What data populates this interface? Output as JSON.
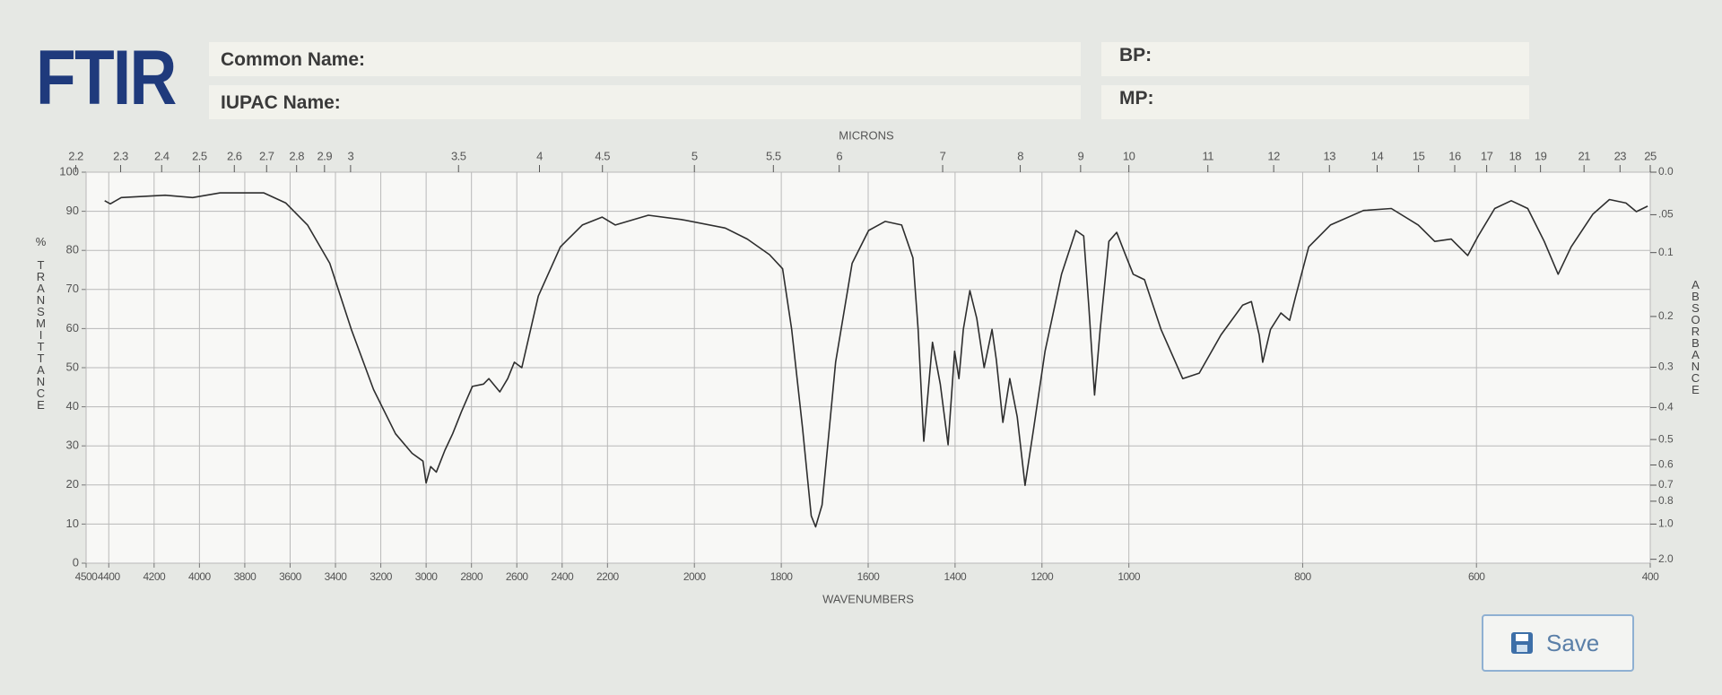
{
  "header": {
    "title": "FTIR",
    "common_name_label": "Common Name:",
    "iupac_name_label": "IUPAC Name:",
    "bp_label": "BP:",
    "mp_label": "MP:"
  },
  "save_button": "Save",
  "chart_data": {
    "type": "line",
    "x_label": "WAVENUMBERS",
    "x2_label": "MICRONS",
    "y_label": "% TRANSMITTANCE",
    "y2_label": "ABSORBANCE",
    "x_scale_breaks": [
      2200,
      1000
    ],
    "xlim": [
      4500,
      400
    ],
    "xticks": [
      4500,
      4400,
      4200,
      4000,
      3800,
      3600,
      3400,
      3200,
      3000,
      2800,
      2600,
      2400,
      2200,
      2000,
      1800,
      1600,
      1400,
      1200,
      1000,
      800,
      600,
      400
    ],
    "x2_scale": "reciprocal",
    "x2ticks": [
      2.2,
      2.3,
      2.4,
      2.5,
      2.6,
      2.7,
      2.8,
      2.9,
      3,
      3.5,
      4,
      4.5,
      5,
      5.5,
      6,
      7,
      8,
      9,
      10,
      11,
      12,
      13,
      14,
      15,
      16,
      17,
      18,
      19,
      21,
      23,
      25
    ],
    "ylim": [
      0,
      100
    ],
    "yticks": [
      0,
      10,
      20,
      30,
      40,
      50,
      60,
      70,
      80,
      90,
      100
    ],
    "y2_scale": "absorbance",
    "y2ticks": [
      {
        "value": 0,
        "label": "0.0"
      },
      {
        "value": 0.05,
        "label": ".05"
      },
      0.1,
      0.2,
      0.3,
      0.4,
      0.5,
      0.6,
      0.7,
      0.8,
      {
        "value": 1,
        "label": "1.0"
      },
      {
        "value": 2,
        "label": "2.0"
      }
    ],
    "grid": true,
    "x": [
      4418,
      4393,
      4345,
      4151,
      4030,
      3909,
      3716,
      3619,
      3523,
      3425,
      3330,
      3232,
      3135,
      3062,
      3014,
      3000,
      2980,
      2955,
      2917,
      2883,
      2844,
      2796,
      2747,
      2723,
      2675,
      2640,
      2611,
      2578,
      2505,
      2408,
      2311,
      2224,
      2182,
      2106,
      2030,
      1929,
      1878,
      1827,
      1797,
      1776,
      1751,
      1731,
      1721,
      1706,
      1675,
      1637,
      1599,
      1561,
      1523,
      1497,
      1485,
      1472,
      1452,
      1434,
      1416,
      1401,
      1391,
      1381,
      1366,
      1350,
      1333,
      1315,
      1305,
      1290,
      1274,
      1257,
      1239,
      1219,
      1193,
      1155,
      1122,
      1104,
      1092,
      1079,
      1066,
      1046,
      1028,
      1010,
      995,
      982,
      963,
      938,
      919,
      894,
      869,
      859,
      850,
      846,
      837,
      825,
      815,
      808,
      793,
      768,
      730,
      698,
      667,
      648,
      629,
      610,
      598,
      579,
      560,
      541,
      522,
      506,
      491,
      466,
      447,
      428,
      416,
      403
    ],
    "series": [
      {
        "color": "#2e2e2e",
        "values": [
          92.7,
          91.9,
          93.5,
          94.1,
          93.5,
          94.7,
          94.7,
          92.1,
          86.5,
          76.7,
          59.8,
          44.4,
          33.1,
          28.1,
          26.1,
          20.5,
          24.7,
          23.3,
          28.9,
          33.1,
          38.8,
          45.2,
          45.8,
          47.2,
          43.8,
          47.2,
          51.4,
          50,
          68.3,
          80.9,
          86.5,
          88.5,
          86.5,
          89,
          87.9,
          85.7,
          82.9,
          78.9,
          75.3,
          59.8,
          34.6,
          12.1,
          9.3,
          14.9,
          51.4,
          76.7,
          85.1,
          87.4,
          86.5,
          78.1,
          59.8,
          31.2,
          56.5,
          45.8,
          30.3,
          54.2,
          47.2,
          59.8,
          69.7,
          62.6,
          50,
          59.8,
          52,
          36,
          47.2,
          37.4,
          19.9,
          34.6,
          54.2,
          73.9,
          85.1,
          83.7,
          65.4,
          43,
          59.8,
          82.3,
          84.6,
          79.5,
          73.9,
          72.5,
          59.8,
          47.2,
          48.6,
          58.4,
          66,
          66.9,
          58.4,
          51.4,
          59.8,
          64,
          62.1,
          68.3,
          80.9,
          86.5,
          90.2,
          90.7,
          86.5,
          82.3,
          82.9,
          78.7,
          83.7,
          90.7,
          92.7,
          90.7,
          82.3,
          73.9,
          80.9,
          89.3,
          93,
          92.1,
          89.9,
          91.3
        ]
      }
    ]
  }
}
